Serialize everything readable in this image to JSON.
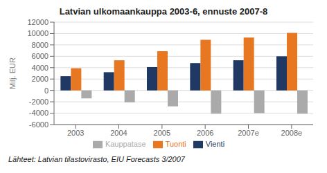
{
  "chart_data": {
    "type": "bar",
    "title": "Latvian ulkomaankauppa 2003-6, ennuste 2007-8",
    "categories": [
      "2003",
      "2004",
      "2005",
      "2006",
      "2007e",
      "2008e"
    ],
    "series": [
      {
        "name": "Vienti",
        "color": "#1F3864",
        "values": [
          2500,
          3200,
          4100,
          4800,
          5300,
          6000
        ]
      },
      {
        "name": "Tuonti",
        "color": "#E87722",
        "values": [
          3900,
          5300,
          6900,
          8900,
          9300,
          10100
        ]
      },
      {
        "name": "Kauppatase",
        "color": "#AAAAAA",
        "values": [
          -1400,
          -2100,
          -2800,
          -4100,
          -4000,
          -4100
        ]
      }
    ],
    "ylabel": "Milj. EUR",
    "ylim": [
      -6000,
      12000
    ],
    "yticks": [
      -6000,
      -4000,
      -2000,
      0,
      2000,
      4000,
      6000,
      8000,
      10000,
      12000
    ],
    "grid": true,
    "legend": "bottom",
    "annotations": [
      "Lähteet: Latvian tilastovirasto, EIU Forecasts 3/2007"
    ]
  }
}
